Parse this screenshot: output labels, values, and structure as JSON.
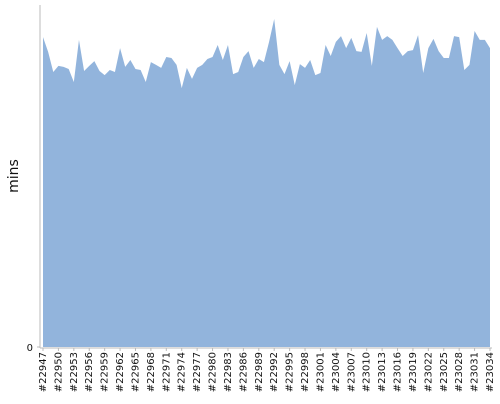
{
  "chart_data": {
    "type": "area",
    "y_label": "mins",
    "color": "#92b4dc",
    "categories": [
      "#22947",
      null,
      null,
      "#22950",
      null,
      null,
      "#22953",
      null,
      null,
      "#22956",
      null,
      null,
      "#22959",
      null,
      null,
      "#22962",
      null,
      null,
      "#22965",
      null,
      null,
      "#22968",
      null,
      null,
      "#22971",
      null,
      null,
      "#22974",
      null,
      null,
      "#22977",
      null,
      null,
      "#22980",
      null,
      null,
      "#22983",
      null,
      null,
      "#22986",
      null,
      null,
      "#22989",
      null,
      null,
      "#22992",
      null,
      null,
      "#22995",
      null,
      null,
      "#22998",
      null,
      null,
      "#23001",
      null,
      null,
      "#23004",
      null,
      null,
      "#23007",
      null,
      null,
      "#23010",
      null,
      null,
      "#23013",
      null,
      null,
      "#23016",
      null,
      null,
      "#23019",
      null,
      null,
      "#23022",
      null,
      null,
      "#23025",
      null,
      null,
      "#23028",
      null,
      null,
      "#23031",
      null,
      null,
      "#23034"
    ],
    "values": [
      90.6,
      86.3,
      80.4,
      82.2,
      81.9,
      81.3,
      77.5,
      89.8,
      80.7,
      82.2,
      83.6,
      80.7,
      79.5,
      81.0,
      80.4,
      87.4,
      81.9,
      83.9,
      81.3,
      81.0,
      77.5,
      83.3,
      82.5,
      81.6,
      84.8,
      84.5,
      82.5,
      75.7,
      81.6,
      78.4,
      81.6,
      82.5,
      84.2,
      84.8,
      88.3,
      83.9,
      88.3,
      79.8,
      80.4,
      84.8,
      86.5,
      81.6,
      84.2,
      83.3,
      89.2,
      95.9,
      82.5,
      79.8,
      83.6,
      76.6,
      82.7,
      81.6,
      83.9,
      79.5,
      80.1,
      88.3,
      85.1,
      89.2,
      90.9,
      87.4,
      90.4,
      86.5,
      86.3,
      91.8,
      82.2,
      93.6,
      89.8,
      90.9,
      89.8,
      87.4,
      85.1,
      86.5,
      86.8,
      91.2,
      80.1,
      87.4,
      90.1,
      86.5,
      84.5,
      84.5,
      90.9,
      90.6,
      81.0,
      82.5,
      92.4,
      89.8,
      89.8,
      87.4
    ],
    "ylim": [
      0,
      100
    ],
    "yticks": [
      0
    ]
  }
}
